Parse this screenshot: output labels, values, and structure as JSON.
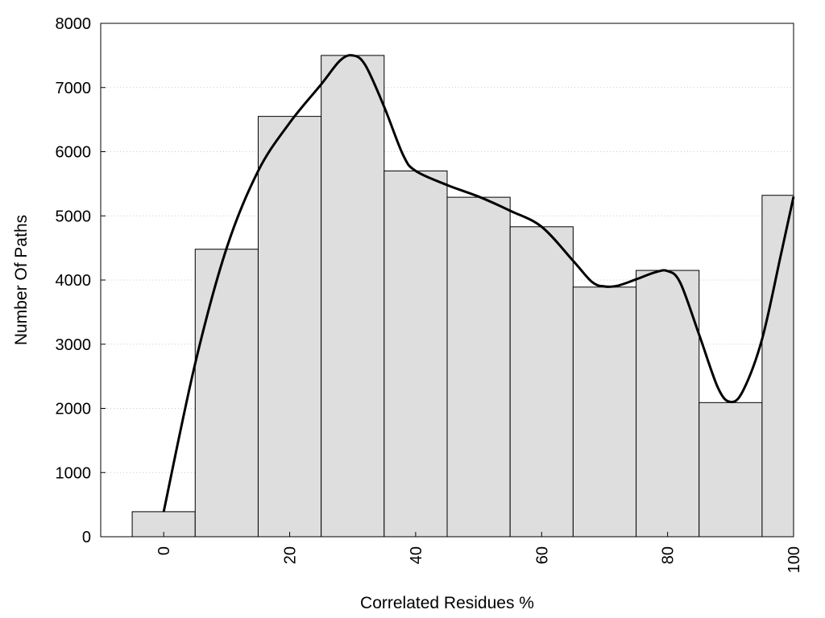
{
  "chart_data": {
    "type": "bar",
    "title": "",
    "xlabel": "Correlated Residues %",
    "ylabel": "Number Of Paths",
    "xlim": [
      -10,
      100
    ],
    "ylim": [
      0,
      8000
    ],
    "bin_width": 10,
    "grid": "horizontal dotted",
    "legend": "none",
    "x_ticks": [
      0,
      20,
      40,
      60,
      80,
      100
    ],
    "x_tick_labels": [
      "0",
      "20",
      "40",
      "60",
      "80",
      "100"
    ],
    "y_ticks": [
      0,
      1000,
      2000,
      3000,
      4000,
      5000,
      6000,
      7000,
      8000
    ],
    "y_tick_labels": [
      "0",
      "1000",
      "2000",
      "3000",
      "4000",
      "5000",
      "6000",
      "7000",
      "8000"
    ],
    "categories": [
      0,
      10,
      20,
      30,
      40,
      50,
      60,
      70,
      80,
      90,
      100
    ],
    "values": [
      390,
      4480,
      6550,
      7500,
      5700,
      5290,
      4830,
      3890,
      4150,
      2090,
      5320
    ],
    "curve": {
      "x": [
        0,
        5,
        10,
        15,
        20,
        25,
        28,
        30,
        32,
        35,
        38,
        40,
        45,
        50,
        55,
        60,
        65,
        68,
        70,
        72,
        75,
        78,
        80,
        82,
        85,
        88,
        90,
        92,
        95,
        98,
        100
      ],
      "y": [
        390,
        2700,
        4500,
        5700,
        6450,
        7050,
        7420,
        7500,
        7350,
        6700,
        5950,
        5700,
        5480,
        5300,
        5080,
        4830,
        4300,
        3970,
        3900,
        3910,
        4010,
        4120,
        4140,
        3960,
        3150,
        2320,
        2100,
        2280,
        3080,
        4400,
        5300
      ]
    },
    "colors": {
      "bar_fill": "#dedede",
      "bar_stroke": "#000000",
      "curve": "#000000",
      "grid": "#cccccc"
    }
  }
}
